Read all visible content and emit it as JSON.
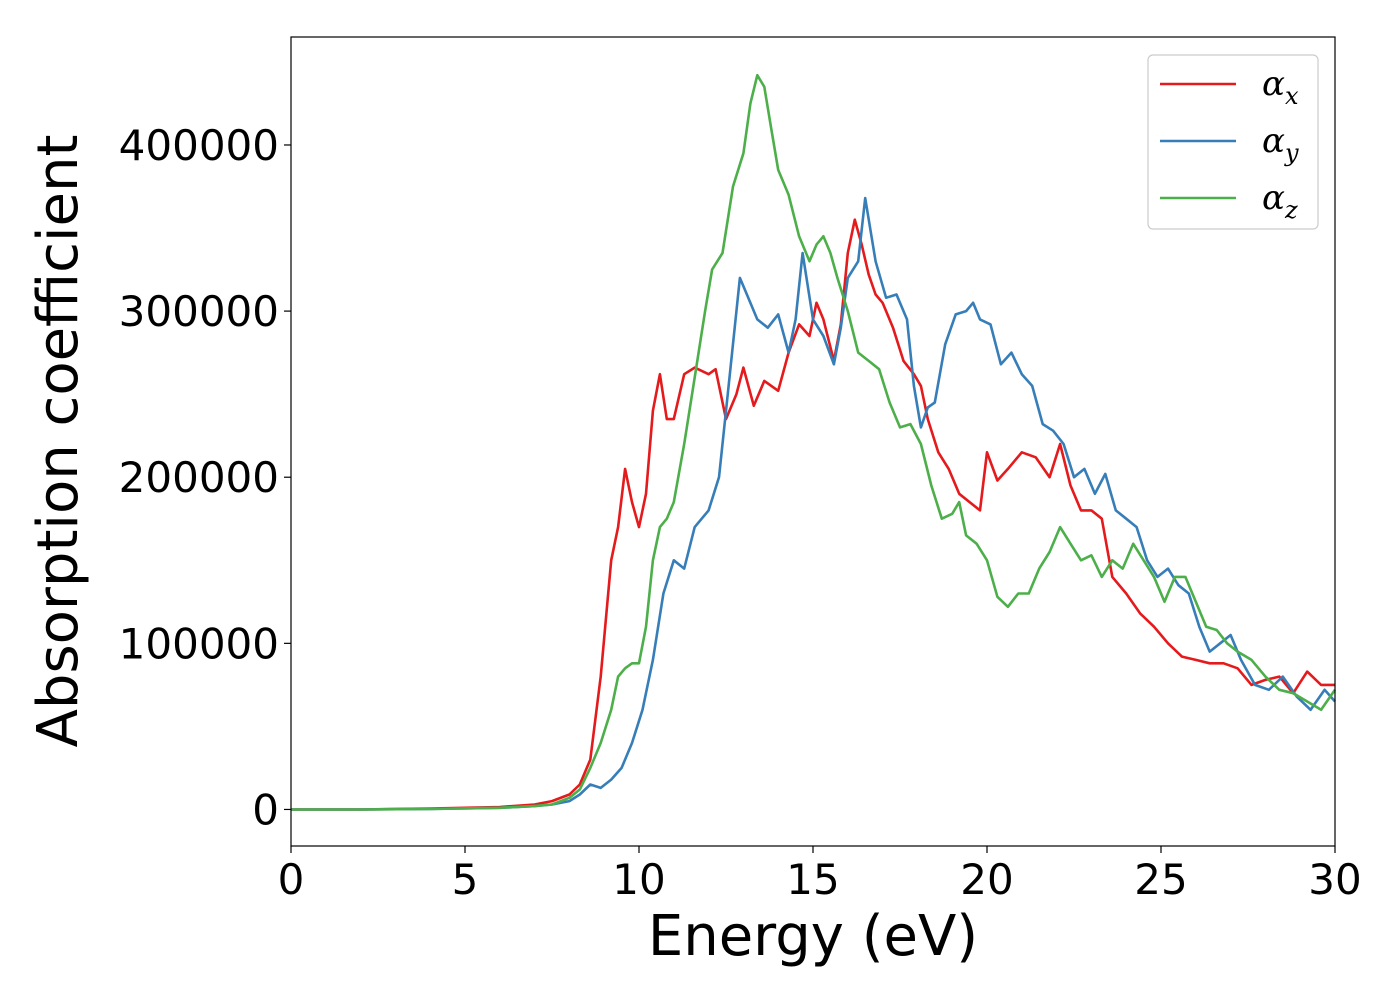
{
  "chart_data": {
    "type": "line",
    "xlabel": "Energy (eV)",
    "ylabel": "Absorption coefficient",
    "xlim": [
      0,
      30
    ],
    "ylim": [
      -22000,
      465000
    ],
    "xticks": [
      0,
      5,
      10,
      15,
      20,
      25,
      30
    ],
    "yticks": [
      0,
      100000,
      200000,
      300000,
      400000
    ],
    "grid": false,
    "legend_position": "top-right",
    "series": [
      {
        "name": "α",
        "subscript": "x",
        "color": "#e41a1c",
        "x": [
          0,
          2,
          4,
          6,
          7,
          7.5,
          8,
          8.3,
          8.6,
          8.9,
          9.2,
          9.4,
          9.6,
          9.8,
          10.0,
          10.2,
          10.4,
          10.6,
          10.8,
          11.0,
          11.3,
          11.6,
          12.0,
          12.2,
          12.5,
          12.8,
          13.0,
          13.3,
          13.6,
          14.0,
          14.3,
          14.6,
          14.9,
          15.1,
          15.3,
          15.6,
          15.8,
          16.0,
          16.2,
          16.4,
          16.6,
          16.8,
          17.0,
          17.3,
          17.6,
          17.9,
          18.1,
          18.3,
          18.6,
          18.9,
          19.2,
          19.5,
          19.8,
          20.0,
          20.3,
          20.6,
          21.0,
          21.4,
          21.8,
          22.1,
          22.4,
          22.7,
          23.0,
          23.3,
          23.6,
          24.0,
          24.4,
          24.8,
          25.2,
          25.6,
          26.0,
          26.4,
          26.8,
          27.2,
          27.6,
          28.0,
          28.4,
          28.8,
          29.2,
          29.6,
          30.0
        ],
        "values": [
          0,
          0,
          500,
          1500,
          3000,
          5000,
          9000,
          15000,
          30000,
          80000,
          150000,
          170000,
          205000,
          185000,
          170000,
          190000,
          240000,
          262000,
          235000,
          235000,
          262000,
          266000,
          262000,
          265000,
          235000,
          250000,
          266000,
          243000,
          258000,
          252000,
          275000,
          292000,
          285000,
          305000,
          295000,
          270000,
          292000,
          335000,
          355000,
          340000,
          322000,
          310000,
          305000,
          290000,
          270000,
          262000,
          255000,
          235000,
          215000,
          205000,
          190000,
          185000,
          180000,
          215000,
          198000,
          205000,
          215000,
          212000,
          200000,
          220000,
          195000,
          180000,
          180000,
          175000,
          140000,
          130000,
          118000,
          110000,
          100000,
          92000,
          90000,
          88000,
          88000,
          85000,
          75000,
          78000,
          80000,
          70000,
          83000,
          75000,
          75000
        ]
      },
      {
        "name": "α",
        "subscript": "y",
        "color": "#377eb8",
        "x": [
          0,
          2,
          4,
          6,
          7,
          7.5,
          8,
          8.3,
          8.6,
          8.9,
          9.2,
          9.5,
          9.8,
          10.1,
          10.4,
          10.7,
          11.0,
          11.3,
          11.6,
          12.0,
          12.3,
          12.6,
          12.9,
          13.1,
          13.4,
          13.7,
          14.0,
          14.3,
          14.5,
          14.7,
          15.0,
          15.3,
          15.6,
          15.8,
          16.0,
          16.3,
          16.5,
          16.8,
          17.1,
          17.4,
          17.7,
          17.9,
          18.1,
          18.3,
          18.5,
          18.8,
          19.1,
          19.4,
          19.6,
          19.8,
          20.1,
          20.4,
          20.7,
          21.0,
          21.3,
          21.6,
          21.9,
          22.2,
          22.5,
          22.8,
          23.1,
          23.4,
          23.7,
          24.0,
          24.3,
          24.6,
          24.9,
          25.2,
          25.5,
          25.8,
          26.1,
          26.4,
          26.7,
          27.0,
          27.3,
          27.7,
          28.1,
          28.5,
          28.9,
          29.3,
          29.7,
          30.0
        ],
        "values": [
          0,
          0,
          300,
          1000,
          2000,
          3000,
          5000,
          9000,
          15000,
          13000,
          18000,
          25000,
          40000,
          60000,
          90000,
          130000,
          150000,
          145000,
          170000,
          180000,
          200000,
          260000,
          320000,
          310000,
          295000,
          290000,
          298000,
          275000,
          295000,
          335000,
          295000,
          285000,
          268000,
          290000,
          320000,
          330000,
          368000,
          330000,
          308000,
          310000,
          295000,
          255000,
          230000,
          242000,
          245000,
          280000,
          298000,
          300000,
          305000,
          295000,
          292000,
          268000,
          275000,
          262000,
          255000,
          232000,
          228000,
          220000,
          200000,
          205000,
          190000,
          202000,
          180000,
          175000,
          170000,
          150000,
          140000,
          145000,
          135000,
          130000,
          110000,
          95000,
          100000,
          105000,
          90000,
          75000,
          72000,
          80000,
          68000,
          60000,
          72000,
          65000
        ]
      },
      {
        "name": "α",
        "subscript": "z",
        "color": "#4daf4a",
        "x": [
          0,
          2,
          4,
          6,
          7,
          7.5,
          8,
          8.3,
          8.6,
          8.9,
          9.2,
          9.4,
          9.6,
          9.8,
          10.0,
          10.2,
          10.4,
          10.6,
          10.8,
          11.0,
          11.3,
          11.6,
          11.9,
          12.1,
          12.4,
          12.7,
          13.0,
          13.2,
          13.4,
          13.6,
          13.8,
          14.0,
          14.3,
          14.6,
          14.9,
          15.1,
          15.3,
          15.5,
          15.7,
          16.0,
          16.3,
          16.6,
          16.9,
          17.2,
          17.5,
          17.8,
          18.1,
          18.4,
          18.7,
          19.0,
          19.2,
          19.4,
          19.7,
          20.0,
          20.3,
          20.6,
          20.9,
          21.2,
          21.5,
          21.8,
          22.1,
          22.4,
          22.7,
          23.0,
          23.3,
          23.6,
          23.9,
          24.2,
          24.5,
          24.8,
          25.1,
          25.4,
          25.7,
          26.0,
          26.3,
          26.6,
          26.9,
          27.2,
          27.6,
          28.0,
          28.4,
          28.8,
          29.2,
          29.6,
          30.0
        ],
        "values": [
          0,
          0,
          300,
          1000,
          2000,
          3000,
          7000,
          12000,
          25000,
          40000,
          60000,
          80000,
          85000,
          88000,
          88000,
          110000,
          150000,
          170000,
          175000,
          185000,
          220000,
          260000,
          300000,
          325000,
          335000,
          375000,
          395000,
          425000,
          442000,
          435000,
          410000,
          385000,
          370000,
          345000,
          330000,
          340000,
          345000,
          335000,
          320000,
          300000,
          275000,
          270000,
          265000,
          245000,
          230000,
          232000,
          220000,
          195000,
          175000,
          178000,
          185000,
          165000,
          160000,
          150000,
          128000,
          122000,
          130000,
          130000,
          145000,
          155000,
          170000,
          160000,
          150000,
          153000,
          140000,
          150000,
          145000,
          160000,
          150000,
          140000,
          125000,
          140000,
          140000,
          125000,
          110000,
          108000,
          100000,
          95000,
          90000,
          80000,
          72000,
          70000,
          65000,
          60000,
          72000
        ]
      }
    ]
  }
}
